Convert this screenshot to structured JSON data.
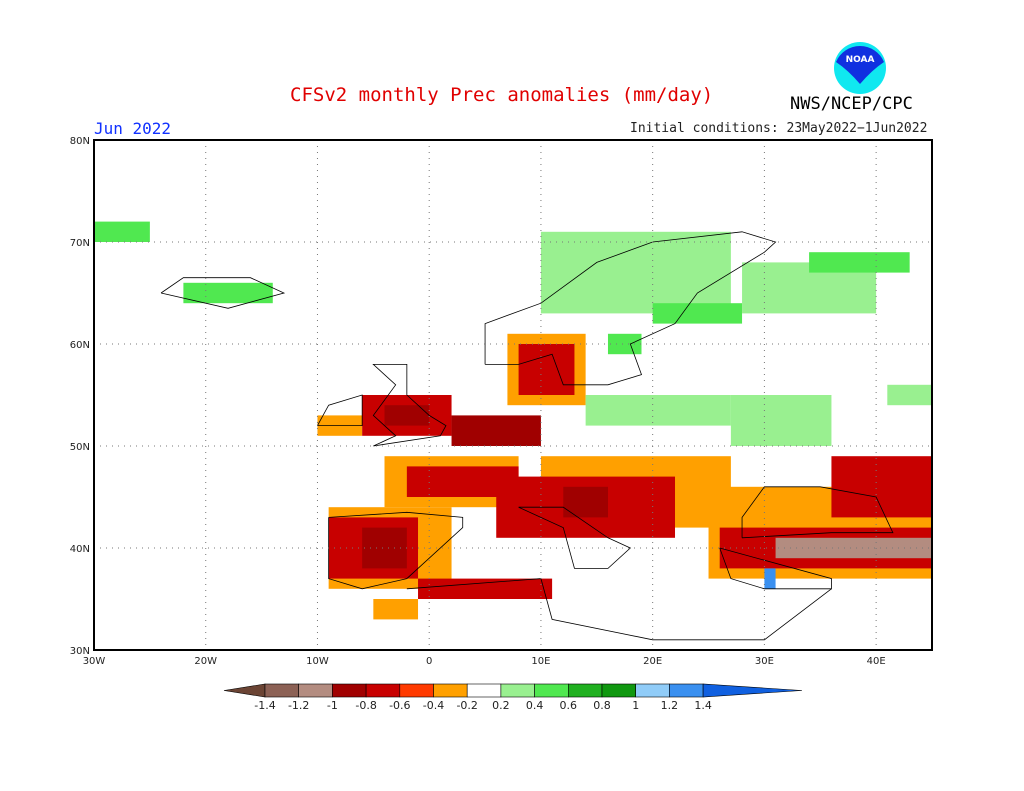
{
  "header": {
    "title": "CFSv2 monthly Prec anomalies (mm/day)",
    "period": "Jun 2022",
    "initial_conditions": "Initial conditions: 23May2022−1Jun2022",
    "organization": "NWS/NCEP/CPC",
    "logo_text": "NOAA"
  },
  "map": {
    "lon_range": [
      -30,
      45
    ],
    "lat_range": [
      30,
      80
    ],
    "lon_ticks": [
      {
        "v": -30,
        "label": "30W"
      },
      {
        "v": -20,
        "label": "20W"
      },
      {
        "v": -10,
        "label": "10W"
      },
      {
        "v": 0,
        "label": "0"
      },
      {
        "v": 10,
        "label": "10E"
      },
      {
        "v": 20,
        "label": "20E"
      },
      {
        "v": 30,
        "label": "30E"
      },
      {
        "v": 40,
        "label": "40E"
      }
    ],
    "lat_ticks": [
      {
        "v": 30,
        "label": "30N"
      },
      {
        "v": 40,
        "label": "40N"
      },
      {
        "v": 50,
        "label": "50N"
      },
      {
        "v": 60,
        "label": "60N"
      },
      {
        "v": 70,
        "label": "70N"
      },
      {
        "v": 80,
        "label": "80N"
      }
    ],
    "anomaly_regions": [
      [
        -9,
        36,
        2,
        44,
        -0.4
      ],
      [
        -9,
        37,
        -1,
        43,
        -0.8
      ],
      [
        -6,
        38,
        -2,
        42,
        -1
      ],
      [
        -5,
        33,
        -1,
        35,
        -0.4
      ],
      [
        -1,
        35,
        11,
        37,
        -0.8
      ],
      [
        -4,
        44,
        8,
        49,
        -0.4
      ],
      [
        -2,
        45,
        8,
        48,
        -0.8
      ],
      [
        -10,
        51,
        -6,
        53,
        -0.4
      ],
      [
        -6,
        51,
        2,
        55,
        -0.8
      ],
      [
        -4,
        52,
        0,
        54,
        -1
      ],
      [
        2,
        50,
        10,
        53,
        -1
      ],
      [
        7,
        54,
        14,
        61,
        -0.4
      ],
      [
        8,
        55,
        13,
        60,
        -0.8
      ],
      [
        10,
        42,
        27,
        49,
        -0.4
      ],
      [
        6,
        41,
        22,
        47,
        -0.8
      ],
      [
        12,
        43,
        16,
        46,
        -1
      ],
      [
        25,
        37,
        45,
        46,
        -0.4
      ],
      [
        26,
        38,
        45,
        42,
        -0.8
      ],
      [
        31,
        39,
        45,
        41,
        -1.2
      ],
      [
        36,
        43,
        45,
        49,
        -0.8
      ],
      [
        10,
        63,
        27,
        71,
        0.2
      ],
      [
        20,
        62,
        28,
        64,
        0.4
      ],
      [
        28,
        63,
        40,
        68,
        0.2
      ],
      [
        34,
        67,
        43,
        69,
        0.4
      ],
      [
        14,
        52,
        27,
        55,
        0.2
      ],
      [
        27,
        50,
        36,
        55,
        0.2
      ],
      [
        16,
        59,
        19,
        61,
        0.4
      ],
      [
        41,
        54,
        45,
        56,
        0.2
      ],
      [
        -22,
        64,
        -14,
        66,
        0.4
      ],
      [
        -30,
        70,
        -25,
        72,
        0.4
      ],
      [
        30,
        36,
        31,
        38,
        1.2
      ]
    ]
  },
  "colorbar": {
    "colors": [
      "#6b4434",
      "#8c6155",
      "#b38c80",
      "#a00000",
      "#c80000",
      "#ff3a00",
      "#ffa000",
      "#ffffff",
      "#99f090",
      "#50e850",
      "#20b020",
      "#109810",
      "#90ccf8",
      "#3a90f0",
      "#1060e0"
    ],
    "labels": [
      "-1.4",
      "-1.2",
      "-1",
      "-0.8",
      "-0.6",
      "-0.4",
      "-0.2",
      "0.2",
      "0.4",
      "0.6",
      "0.8",
      "1",
      "1.2",
      "1.4"
    ],
    "thresholds": [
      -1.4,
      -1.2,
      -1,
      -0.8,
      -0.6,
      -0.4,
      -0.2,
      0.2,
      0.4,
      0.6,
      0.8,
      1,
      1.2,
      1.4
    ]
  }
}
